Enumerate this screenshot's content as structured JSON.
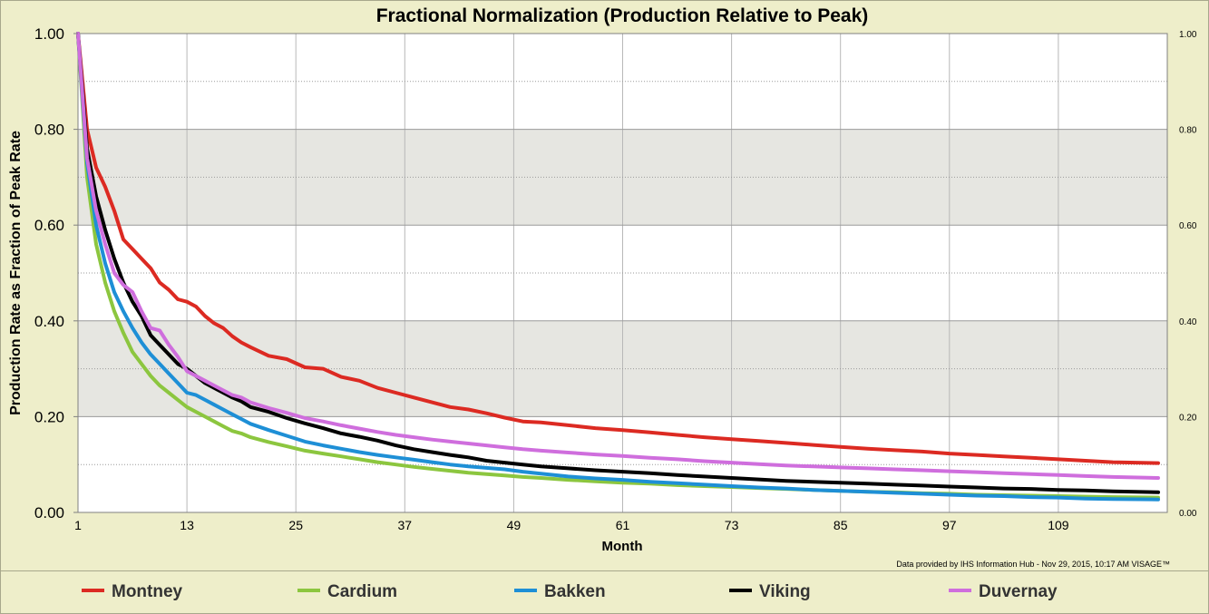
{
  "chart_data": {
    "type": "line",
    "title": "Fractional Normalization (Production Relative to Peak)",
    "xlabel": "Month",
    "ylabel": "Production Rate as Fraction of Peak Rate",
    "credit": "Data provided by IHS Information Hub - Nov 29, 2015, 10:17 AM VISAGE™",
    "xlim": [
      1,
      121
    ],
    "ylim": [
      0,
      1
    ],
    "x_ticks": [
      "1",
      "13",
      "25",
      "37",
      "49",
      "61",
      "73",
      "85",
      "97",
      "109"
    ],
    "y_ticks": [
      "0.00",
      "0.20",
      "0.40",
      "0.60",
      "0.80",
      "1.00"
    ],
    "grid": true,
    "legend_position": "bottom",
    "series": [
      {
        "name": "Montney",
        "color": "#dc2a22",
        "x": [
          1,
          2,
          3,
          4,
          5,
          6,
          7,
          8,
          9,
          10,
          11,
          12,
          13,
          14,
          15,
          16,
          17,
          18,
          19,
          20,
          22,
          24,
          26,
          28,
          30,
          32,
          34,
          36,
          38,
          40,
          42,
          44,
          46,
          48,
          50,
          52,
          55,
          58,
          61,
          64,
          67,
          70,
          73,
          76,
          79,
          82,
          85,
          88,
          91,
          94,
          97,
          100,
          103,
          106,
          109,
          112,
          115,
          120
        ],
        "values": [
          1.0,
          0.8,
          0.72,
          0.68,
          0.63,
          0.57,
          0.55,
          0.53,
          0.51,
          0.48,
          0.465,
          0.445,
          0.44,
          0.43,
          0.41,
          0.395,
          0.385,
          0.368,
          0.355,
          0.345,
          0.327,
          0.32,
          0.303,
          0.3,
          0.283,
          0.275,
          0.26,
          0.25,
          0.24,
          0.23,
          0.22,
          0.215,
          0.207,
          0.198,
          0.19,
          0.188,
          0.182,
          0.176,
          0.172,
          0.167,
          0.162,
          0.157,
          0.153,
          0.149,
          0.145,
          0.141,
          0.137,
          0.133,
          0.13,
          0.127,
          0.123,
          0.12,
          0.117,
          0.114,
          0.111,
          0.108,
          0.105,
          0.103
        ]
      },
      {
        "name": "Cardium",
        "color": "#8cc63f",
        "x": [
          1,
          2,
          3,
          4,
          5,
          6,
          7,
          8,
          9,
          10,
          11,
          12,
          13,
          14,
          15,
          16,
          17,
          18,
          19,
          20,
          22,
          24,
          26,
          28,
          30,
          32,
          34,
          36,
          38,
          40,
          42,
          44,
          46,
          48,
          50,
          52,
          55,
          58,
          61,
          64,
          67,
          70,
          73,
          76,
          79,
          82,
          85,
          88,
          91,
          94,
          97,
          100,
          103,
          106,
          109,
          112,
          115,
          120
        ],
        "values": [
          1.0,
          0.7,
          0.56,
          0.48,
          0.42,
          0.375,
          0.335,
          0.31,
          0.285,
          0.265,
          0.25,
          0.235,
          0.22,
          0.21,
          0.2,
          0.19,
          0.18,
          0.17,
          0.165,
          0.157,
          0.147,
          0.138,
          0.129,
          0.123,
          0.117,
          0.111,
          0.105,
          0.1,
          0.095,
          0.091,
          0.087,
          0.083,
          0.08,
          0.077,
          0.074,
          0.072,
          0.068,
          0.065,
          0.062,
          0.06,
          0.057,
          0.055,
          0.053,
          0.051,
          0.049,
          0.047,
          0.045,
          0.043,
          0.042,
          0.04,
          0.039,
          0.037,
          0.036,
          0.035,
          0.034,
          0.033,
          0.032,
          0.031
        ]
      },
      {
        "name": "Bakken",
        "color": "#1e8fd6",
        "x": [
          1,
          2,
          3,
          4,
          5,
          6,
          7,
          8,
          9,
          10,
          11,
          12,
          13,
          14,
          15,
          16,
          17,
          18,
          19,
          20,
          22,
          24,
          26,
          28,
          30,
          32,
          34,
          36,
          38,
          40,
          42,
          44,
          46,
          48,
          50,
          52,
          55,
          58,
          61,
          64,
          67,
          70,
          73,
          76,
          79,
          82,
          85,
          88,
          91,
          94,
          97,
          100,
          103,
          106,
          109,
          112,
          115,
          120
        ],
        "values": [
          1.0,
          0.73,
          0.6,
          0.52,
          0.46,
          0.42,
          0.385,
          0.355,
          0.33,
          0.31,
          0.29,
          0.27,
          0.25,
          0.245,
          0.235,
          0.225,
          0.215,
          0.205,
          0.195,
          0.185,
          0.172,
          0.16,
          0.148,
          0.14,
          0.133,
          0.126,
          0.12,
          0.115,
          0.11,
          0.105,
          0.1,
          0.096,
          0.093,
          0.09,
          0.085,
          0.081,
          0.075,
          0.071,
          0.068,
          0.064,
          0.061,
          0.058,
          0.055,
          0.052,
          0.05,
          0.047,
          0.045,
          0.043,
          0.041,
          0.039,
          0.037,
          0.035,
          0.034,
          0.032,
          0.031,
          0.029,
          0.028,
          0.027
        ]
      },
      {
        "name": "Viking",
        "color": "#000000",
        "x": [
          1,
          2,
          3,
          4,
          5,
          6,
          7,
          8,
          9,
          10,
          11,
          12,
          13,
          14,
          15,
          16,
          17,
          18,
          19,
          20,
          22,
          24,
          26,
          28,
          30,
          32,
          34,
          36,
          38,
          40,
          42,
          44,
          46,
          48,
          50,
          52,
          55,
          58,
          61,
          64,
          67,
          70,
          73,
          76,
          79,
          82,
          85,
          88,
          91,
          94,
          97,
          100,
          103,
          106,
          109,
          112,
          115,
          120
        ],
        "values": [
          1.0,
          0.76,
          0.66,
          0.59,
          0.53,
          0.48,
          0.44,
          0.41,
          0.37,
          0.35,
          0.33,
          0.31,
          0.3,
          0.285,
          0.27,
          0.26,
          0.25,
          0.24,
          0.232,
          0.22,
          0.21,
          0.197,
          0.186,
          0.176,
          0.165,
          0.158,
          0.15,
          0.14,
          0.132,
          0.126,
          0.12,
          0.115,
          0.108,
          0.104,
          0.1,
          0.096,
          0.092,
          0.088,
          0.085,
          0.082,
          0.078,
          0.075,
          0.072,
          0.069,
          0.066,
          0.064,
          0.062,
          0.06,
          0.058,
          0.056,
          0.054,
          0.052,
          0.05,
          0.049,
          0.047,
          0.046,
          0.044,
          0.042
        ]
      },
      {
        "name": "Duvernay",
        "color": "#cf6edd",
        "x": [
          1,
          2,
          3,
          4,
          5,
          6,
          7,
          8,
          9,
          10,
          11,
          12,
          13,
          14,
          15,
          16,
          17,
          18,
          19,
          20,
          22,
          24,
          26,
          28,
          30,
          32,
          34,
          36,
          38,
          40,
          42,
          44,
          46,
          48,
          50,
          52,
          55,
          58,
          61,
          64,
          67,
          70,
          73,
          76,
          79,
          82,
          85,
          88,
          91,
          94,
          97,
          100,
          103,
          106,
          109,
          112,
          115,
          120
        ],
        "values": [
          1.0,
          0.74,
          0.63,
          0.56,
          0.5,
          0.475,
          0.46,
          0.42,
          0.385,
          0.38,
          0.35,
          0.325,
          0.295,
          0.285,
          0.275,
          0.265,
          0.255,
          0.245,
          0.24,
          0.23,
          0.218,
          0.208,
          0.197,
          0.19,
          0.182,
          0.175,
          0.168,
          0.162,
          0.157,
          0.152,
          0.148,
          0.144,
          0.14,
          0.136,
          0.132,
          0.129,
          0.125,
          0.121,
          0.118,
          0.114,
          0.111,
          0.107,
          0.104,
          0.101,
          0.098,
          0.096,
          0.094,
          0.092,
          0.09,
          0.088,
          0.086,
          0.084,
          0.082,
          0.08,
          0.078,
          0.076,
          0.074,
          0.072
        ]
      }
    ]
  }
}
